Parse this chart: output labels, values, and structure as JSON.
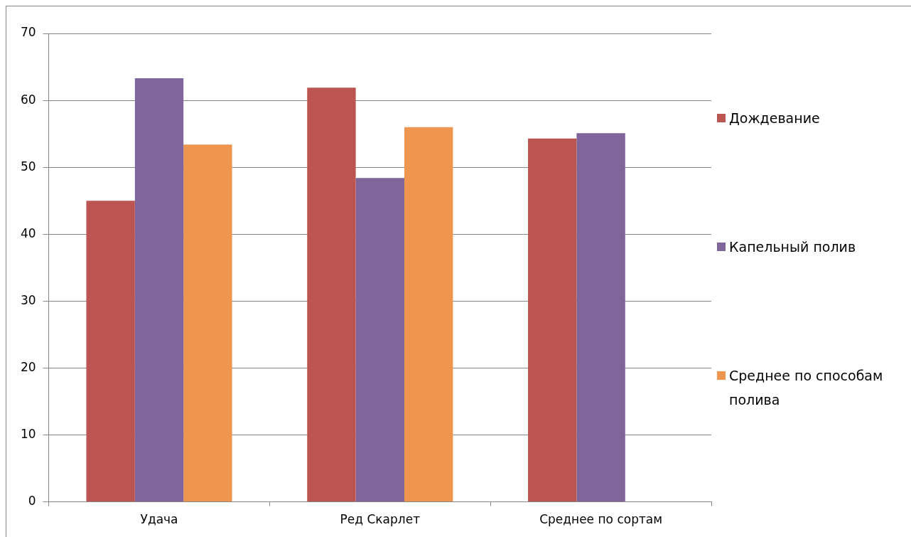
{
  "chart_data": {
    "type": "bar",
    "categories": [
      "Удача",
      "Ред Скарлет",
      "Среднее по сортам"
    ],
    "series": [
      {
        "name": "Дождевание",
        "color": "#bc5551",
        "values": [
          45.0,
          61.9,
          54.3
        ]
      },
      {
        "name": "Капельный полив",
        "color": "#7f659a",
        "values": [
          63.3,
          48.4,
          55.1
        ]
      },
      {
        "name": "Среднее по способам полива",
        "color": "#ee9550",
        "values": [
          53.4,
          56.0,
          null
        ]
      }
    ],
    "ylim": [
      0,
      70
    ],
    "yticks": [
      0,
      10,
      20,
      30,
      40,
      50,
      60,
      70
    ],
    "grid": "y",
    "legend": "right"
  }
}
